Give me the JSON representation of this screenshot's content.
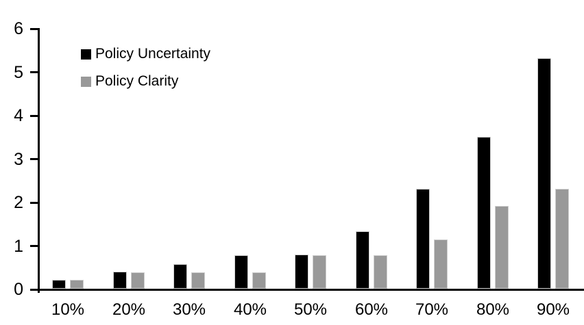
{
  "chart_data": {
    "type": "bar",
    "categories": [
      "10%",
      "20%",
      "30%",
      "40%",
      "50%",
      "60%",
      "70%",
      "80%",
      "90%"
    ],
    "series": [
      {
        "name": "Policy Uncertainty",
        "color": "#000000",
        "values": [
          0.2,
          0.4,
          0.57,
          0.77,
          0.78,
          1.33,
          2.3,
          3.5,
          5.3
        ]
      },
      {
        "name": "Policy Clarity",
        "color": "#999999",
        "values": [
          0.2,
          0.38,
          0.38,
          0.38,
          0.77,
          0.77,
          1.13,
          1.9,
          2.3
        ]
      }
    ],
    "xlabel": "",
    "ylabel": "",
    "ylim": [
      0,
      6
    ],
    "yticks": [
      0,
      1,
      2,
      3,
      4,
      5,
      6
    ],
    "grid": false,
    "legend_position": "top-left",
    "axis_color": "#000000",
    "background_color": "#ffffff"
  }
}
